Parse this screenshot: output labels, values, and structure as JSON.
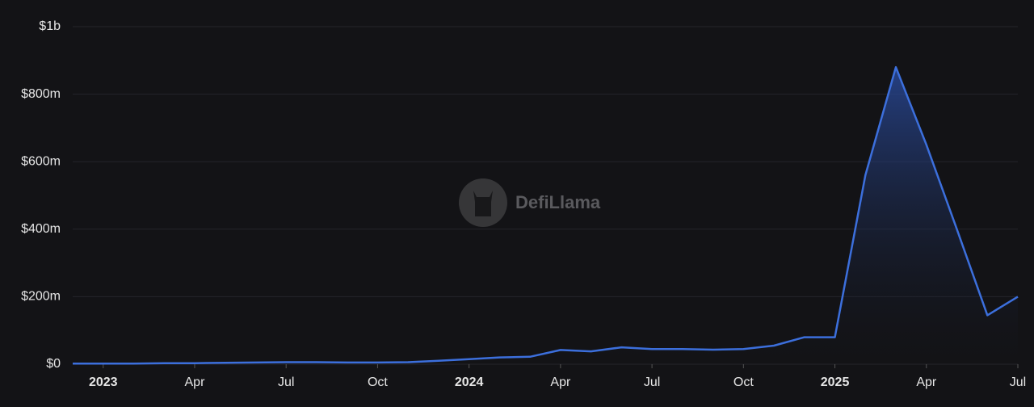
{
  "chart_data": {
    "type": "area",
    "watermark": "DefiLlama",
    "color": "#3c6fdc",
    "grid": true,
    "x": [
      "2022-12",
      "2023-01",
      "2023-02",
      "2023-03",
      "2023-04",
      "2023-05",
      "2023-06",
      "2023-07",
      "2023-08",
      "2023-09",
      "2023-10",
      "2023-11",
      "2023-12",
      "2024-01",
      "2024-02",
      "2024-03",
      "2024-04",
      "2024-05",
      "2024-06",
      "2024-07",
      "2024-08",
      "2024-09",
      "2024-10",
      "2024-11",
      "2024-12",
      "2025-01",
      "2025-02",
      "2025-03",
      "2025-04",
      "2025-05",
      "2025-06",
      "2025-07"
    ],
    "values": [
      2000000,
      2000000,
      2000000,
      3000000,
      3000000,
      4000000,
      5000000,
      6000000,
      6000000,
      5000000,
      5000000,
      6000000,
      10000000,
      15000000,
      20000000,
      22000000,
      42000000,
      38000000,
      50000000,
      45000000,
      45000000,
      43000000,
      45000000,
      55000000,
      80000000,
      80000000,
      560000000,
      880000000,
      650000000,
      400000000,
      145000000,
      200000000
    ],
    "xlim": [
      "2022-12",
      "2025-07"
    ],
    "xticks": [
      {
        "value": "2023-01",
        "label": "2023"
      },
      {
        "value": "2023-04",
        "label": "Apr"
      },
      {
        "value": "2023-07",
        "label": "Jul"
      },
      {
        "value": "2023-10",
        "label": "Oct"
      },
      {
        "value": "2024-01",
        "label": "2024"
      },
      {
        "value": "2024-04",
        "label": "Apr"
      },
      {
        "value": "2024-07",
        "label": "Jul"
      },
      {
        "value": "2024-10",
        "label": "Oct"
      },
      {
        "value": "2025-01",
        "label": "2025"
      },
      {
        "value": "2025-04",
        "label": "Apr"
      },
      {
        "value": "2025-07",
        "label": "Jul"
      }
    ],
    "ylim": [
      0,
      1000000000
    ],
    "yticks": [
      {
        "value": 0,
        "label": "$0"
      },
      {
        "value": 200000000,
        "label": "$200m"
      },
      {
        "value": 400000000,
        "label": "$400m"
      },
      {
        "value": 600000000,
        "label": "$600m"
      },
      {
        "value": 800000000,
        "label": "$800m"
      },
      {
        "value": 1000000000,
        "label": "$1b"
      }
    ]
  }
}
